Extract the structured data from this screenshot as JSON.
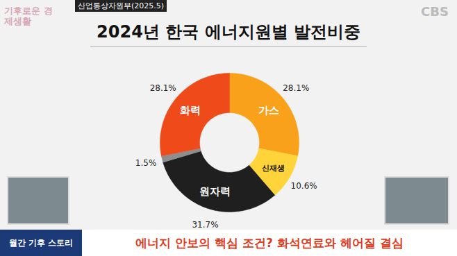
{
  "chart_data": {
    "type": "pie",
    "title": "2024년 한국 에너지원별 발전비중",
    "categories": [
      "가스",
      "신재생",
      "원자력",
      null,
      "화력"
    ],
    "values": [
      28.1,
      10.6,
      31.7,
      1.5,
      28.1
    ],
    "value_labels": [
      "28.1%",
      "10.6%",
      "31.7%",
      "1.5%",
      "28.1%"
    ],
    "colors": [
      "#f9a11b",
      "#ffd43b",
      "#1f1f1f",
      "#8e8e8e",
      "#ef4a1a"
    ],
    "data_labels": true,
    "annotations": [
      "산업통상자원부(2025.5)",
      "CBS",
      "기후로운 경제생활",
      "월간 기후 스토리",
      "에너지 안보의 핵심 조건? 화석연료와 헤어질 결심"
    ]
  }
}
